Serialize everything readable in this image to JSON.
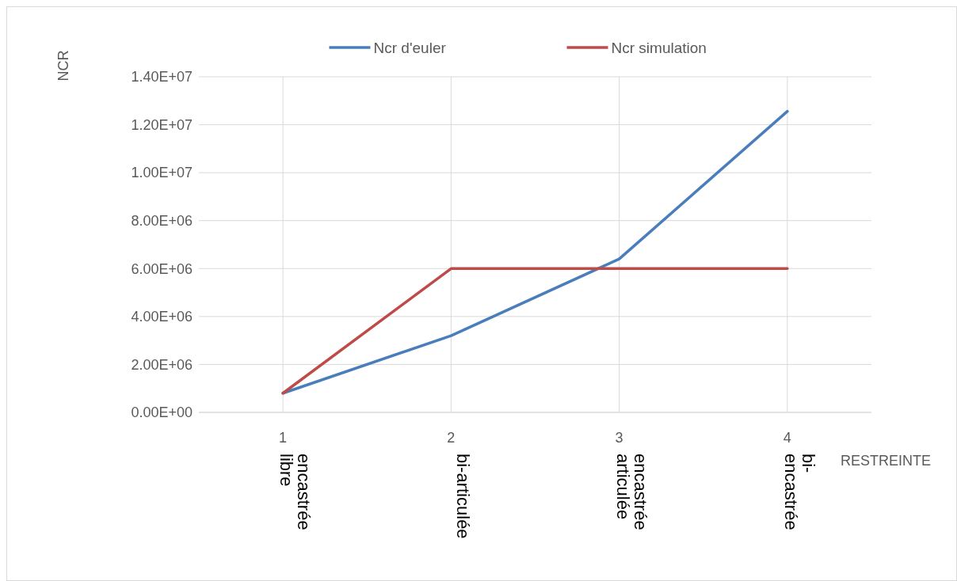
{
  "chart_data": {
    "type": "line",
    "categories": [
      "1\nencastrée\nlibre",
      "2\nbi-articulée",
      "3\nencastrée\narticulée",
      "4\nbi-\nencastrée"
    ],
    "series": [
      {
        "name": "Ncr d'euler",
        "color": "#4a7ebb",
        "values": [
          800000,
          3200000,
          6400000,
          12560000
        ]
      },
      {
        "name": "Ncr simulation",
        "color": "#be4b48",
        "values": [
          800000,
          6000000,
          6000000,
          6000000
        ]
      }
    ],
    "ylim": [
      0,
      14000000
    ],
    "yticks": [
      {
        "value": 0,
        "label": "0.00E+00"
      },
      {
        "value": 2000000,
        "label": "2.00E+06"
      },
      {
        "value": 4000000,
        "label": "4.00E+06"
      },
      {
        "value": 6000000,
        "label": "6.00E+06"
      },
      {
        "value": 8000000,
        "label": "8.00E+06"
      },
      {
        "value": 10000000,
        "label": "1.00E+07"
      },
      {
        "value": 12000000,
        "label": "1.20E+07"
      },
      {
        "value": 14000000,
        "label": "1.40E+07"
      }
    ],
    "ylabel": "NCR",
    "xlabel": "RESTREINTE",
    "grid": true,
    "legend": "top",
    "marker": "none",
    "line_style": "solid"
  }
}
